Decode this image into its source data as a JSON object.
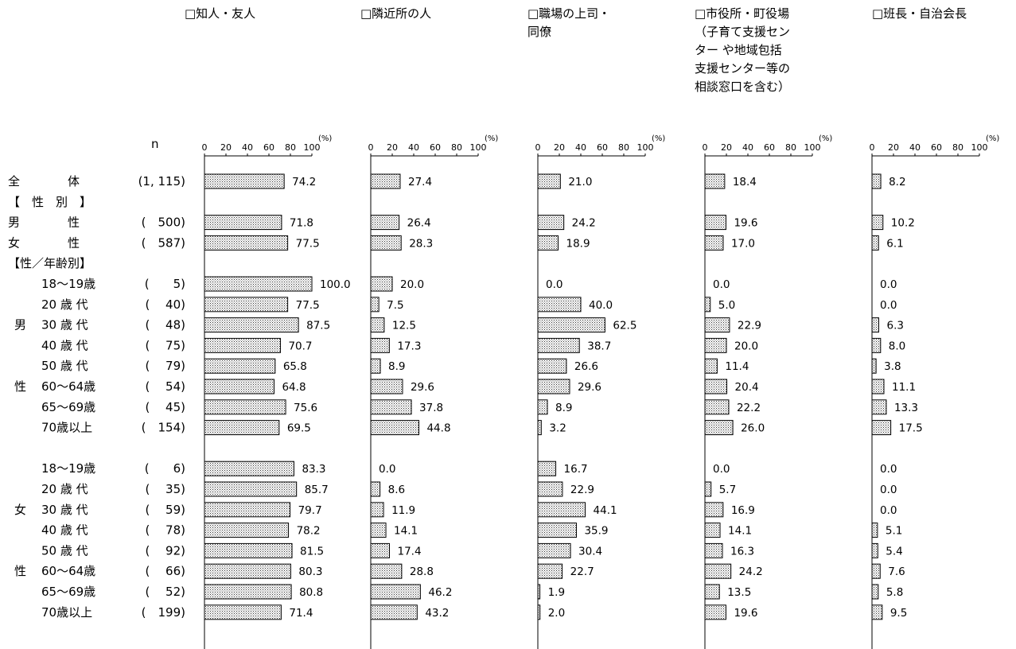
{
  "chart_data": {
    "type": "bar",
    "orientation": "horizontal",
    "n_label": "n",
    "unit": "(%)",
    "xlim": [
      0,
      100
    ],
    "ticks": [
      "0",
      "20",
      "40",
      "60",
      "80",
      "100"
    ],
    "series": [
      {
        "name": "□知人・友人",
        "name_lines": [
          "□知人・友人"
        ]
      },
      {
        "name": "□隣近所の人",
        "name_lines": [
          "□隣近所の人"
        ]
      },
      {
        "name": "□職場の上司・同僚",
        "name_lines": [
          "□職場の上司・",
          "同僚"
        ]
      },
      {
        "name": "□市役所・町役場（子育て支援センターや地域包括支援センター等の相談窓口を含む）",
        "name_lines": [
          "□市役所・町役場",
          "（子育て支援セン",
          "ター や地域包括",
          "支援センター等の",
          "相談窓口を含む）"
        ]
      },
      {
        "name": "□班長・自治会長",
        "name_lines": [
          "□班長・自治会長"
        ]
      }
    ],
    "rows": [
      {
        "type": "data",
        "label": "全　　　　体",
        "n": "(1, 115)",
        "values": [
          74.2,
          27.4,
          21.0,
          18.4,
          8.2
        ]
      },
      {
        "type": "header",
        "label": "【　性　別　】"
      },
      {
        "type": "data",
        "label": "男　　　　性",
        "n": "(　500)",
        "values": [
          71.8,
          26.4,
          24.2,
          19.6,
          10.2
        ]
      },
      {
        "type": "data",
        "label": "女　　　　性",
        "n": "(　587)",
        "values": [
          77.5,
          28.3,
          18.9,
          17.0,
          6.1
        ]
      },
      {
        "type": "header",
        "label": "【性／年齢別】"
      },
      {
        "type": "data",
        "group": "男",
        "label": "18～19歳",
        "n": "(　　5)",
        "values": [
          100.0,
          20.0,
          0.0,
          0.0,
          0.0
        ]
      },
      {
        "type": "data",
        "group": "男",
        "label": "20 歳 代",
        "n": "(　 40)",
        "values": [
          77.5,
          7.5,
          40.0,
          5.0,
          0.0
        ]
      },
      {
        "type": "data",
        "group": "男",
        "side_label": "男",
        "label": "30 歳 代",
        "n": "(　 48)",
        "values": [
          87.5,
          12.5,
          62.5,
          22.9,
          6.3
        ]
      },
      {
        "type": "data",
        "group": "男",
        "label": "40 歳 代",
        "n": "(　 75)",
        "values": [
          70.7,
          17.3,
          38.7,
          20.0,
          8.0
        ]
      },
      {
        "type": "data",
        "group": "男",
        "label": "50 歳 代",
        "n": "(　 79)",
        "values": [
          65.8,
          8.9,
          26.6,
          11.4,
          3.8
        ]
      },
      {
        "type": "data",
        "group": "男",
        "side_label": "性",
        "label": "60～64歳",
        "n": "(　 54)",
        "values": [
          64.8,
          29.6,
          29.6,
          20.4,
          11.1
        ]
      },
      {
        "type": "data",
        "group": "男",
        "label": "65～69歳",
        "n": "(　 45)",
        "values": [
          75.6,
          37.8,
          8.9,
          22.2,
          13.3
        ]
      },
      {
        "type": "data",
        "group": "男",
        "label": "70歳以上",
        "n": "(　154)",
        "values": [
          69.5,
          44.8,
          3.2,
          26.0,
          17.5
        ]
      },
      {
        "type": "gap"
      },
      {
        "type": "data",
        "group": "女",
        "label": "18～19歳",
        "n": "(　　6)",
        "values": [
          83.3,
          0.0,
          16.7,
          0.0,
          0.0
        ]
      },
      {
        "type": "data",
        "group": "女",
        "label": "20 歳 代",
        "n": "(　 35)",
        "values": [
          85.7,
          8.6,
          22.9,
          5.7,
          0.0
        ]
      },
      {
        "type": "data",
        "group": "女",
        "side_label": "女",
        "label": "30 歳 代",
        "n": "(　 59)",
        "values": [
          79.7,
          11.9,
          44.1,
          16.9,
          0.0
        ]
      },
      {
        "type": "data",
        "group": "女",
        "label": "40 歳 代",
        "n": "(　 78)",
        "values": [
          78.2,
          14.1,
          35.9,
          14.1,
          5.1
        ]
      },
      {
        "type": "data",
        "group": "女",
        "label": "50 歳 代",
        "n": "(　 92)",
        "values": [
          81.5,
          17.4,
          30.4,
          16.3,
          5.4
        ]
      },
      {
        "type": "data",
        "group": "女",
        "side_label": "性",
        "label": "60～64歳",
        "n": "(　 66)",
        "values": [
          80.3,
          28.8,
          22.7,
          24.2,
          7.6
        ]
      },
      {
        "type": "data",
        "group": "女",
        "label": "65～69歳",
        "n": "(　 52)",
        "values": [
          80.8,
          46.2,
          1.9,
          13.5,
          5.8
        ]
      },
      {
        "type": "data",
        "group": "女",
        "label": "70歳以上",
        "n": "(　199)",
        "values": [
          71.4,
          43.2,
          2.0,
          19.6,
          9.5
        ]
      }
    ]
  }
}
